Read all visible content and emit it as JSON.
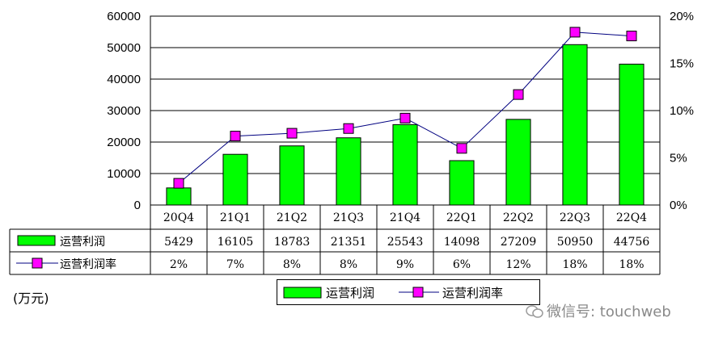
{
  "chart_data": {
    "type": "bar",
    "categories": [
      "20Q4",
      "21Q1",
      "21Q2",
      "21Q3",
      "21Q4",
      "22Q1",
      "22Q2",
      "22Q3",
      "22Q4"
    ],
    "series": [
      {
        "name": "运营利润",
        "type": "bar",
        "axis": "left",
        "color": "#00ff00",
        "values": [
          5429,
          16105,
          18783,
          21351,
          25543,
          14098,
          27209,
          50950,
          44756
        ],
        "labels": [
          "5429",
          "16105",
          "18783",
          "21351",
          "25543",
          "14098",
          "27209",
          "50950",
          "44756"
        ]
      },
      {
        "name": "运营利润率",
        "type": "line",
        "axis": "right",
        "color": "#ff00ff",
        "line_color": "#000080",
        "values": [
          2.3,
          7.3,
          7.6,
          8.1,
          9.2,
          6.0,
          11.7,
          18.3,
          17.9
        ],
        "labels": [
          "2%",
          "7%",
          "8%",
          "8%",
          "9%",
          "6%",
          "12%",
          "18%",
          "18%"
        ]
      }
    ],
    "y_left": {
      "lim": [
        0,
        60000
      ],
      "ticks": [
        "0",
        "10000",
        "20000",
        "30000",
        "40000",
        "50000",
        "60000"
      ]
    },
    "y_right": {
      "lim": [
        0,
        20
      ],
      "ticks": [
        "0%",
        "5%",
        "10%",
        "15%",
        "20%"
      ]
    },
    "grid": true,
    "legend": {
      "placement": "bottom-center"
    },
    "unit_label": "(万元)"
  },
  "watermark": {
    "text": "微信号: touchweb"
  }
}
